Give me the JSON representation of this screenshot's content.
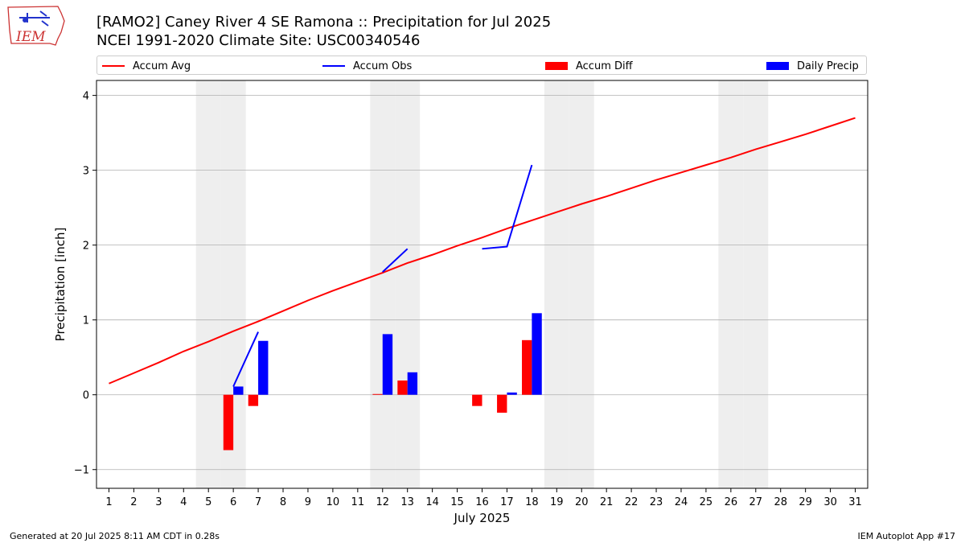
{
  "header": {
    "title_line1": "[RAMO2] Caney River 4 SE Ramona :: Precipitation for Jul 2025",
    "title_line2": "NCEI 1991-2020 Climate Site: USC00340546",
    "logo_text": "IEM"
  },
  "footer": {
    "generated": "Generated at 20 Jul 2025 8:11 AM CDT in 0.28s",
    "app": "IEM Autoplot App #17"
  },
  "colors": {
    "accum_avg": "#ff0000",
    "accum_obs": "#0000ff",
    "accum_diff": "#ff0000",
    "daily_precip": "#0000ff",
    "weekend_shade": "#eeeeee",
    "grid": "#b0b0b0"
  },
  "chart_data": {
    "type": "bar",
    "title": "[RAMO2] Caney River 4 SE Ramona :: Precipitation for Jul 2025",
    "subtitle": "NCEI 1991-2020 Climate Site: USC00340546",
    "xlabel": "July 2025",
    "ylabel": "Precipitation [inch]",
    "xlim": [
      0.5,
      31.5
    ],
    "ylim": [
      -1.25,
      4.2
    ],
    "yticks": [
      -1,
      0,
      1,
      2,
      3,
      4
    ],
    "ytick_labels": [
      "−1",
      "0",
      "1",
      "2",
      "3",
      "4"
    ],
    "grid": "horizontal",
    "legend_position": "top",
    "x": [
      1,
      2,
      3,
      4,
      5,
      6,
      7,
      8,
      9,
      10,
      11,
      12,
      13,
      14,
      15,
      16,
      17,
      18,
      19,
      20,
      21,
      22,
      23,
      24,
      25,
      26,
      27,
      28,
      29,
      30,
      31
    ],
    "x_labels": [
      "1",
      "2",
      "3",
      "4",
      "5",
      "6",
      "7",
      "8",
      "9",
      "10",
      "11",
      "12",
      "13",
      "14",
      "15",
      "16",
      "17",
      "18",
      "19",
      "20",
      "21",
      "22",
      "23",
      "24",
      "25",
      "26",
      "27",
      "28",
      "29",
      "30",
      "31"
    ],
    "weekend_days": [
      5,
      6,
      12,
      13,
      19,
      20,
      26,
      27
    ],
    "series": [
      {
        "name": "Accum Avg",
        "kind": "line",
        "values": [
          0.15,
          0.29,
          0.43,
          0.58,
          0.71,
          0.85,
          0.98,
          1.12,
          1.26,
          1.39,
          1.51,
          1.63,
          1.76,
          1.87,
          1.99,
          2.1,
          2.22,
          2.33,
          2.44,
          2.55,
          2.65,
          2.76,
          2.87,
          2.97,
          3.07,
          3.17,
          3.28,
          3.38,
          3.48,
          3.59,
          3.7
        ]
      },
      {
        "name": "Accum Obs",
        "kind": "line",
        "values": [
          null,
          null,
          null,
          null,
          null,
          0.11,
          0.84,
          null,
          null,
          null,
          null,
          1.64,
          1.95,
          null,
          null,
          1.95,
          1.98,
          3.07,
          null,
          null,
          null,
          null,
          null,
          null,
          null,
          null,
          null,
          null,
          null,
          null,
          null
        ]
      },
      {
        "name": "Accum Diff",
        "kind": "bar",
        "values": [
          null,
          null,
          null,
          null,
          null,
          -0.74,
          -0.15,
          null,
          null,
          null,
          null,
          0.01,
          0.19,
          null,
          null,
          -0.15,
          -0.24,
          0.73,
          null,
          null,
          null,
          null,
          null,
          null,
          null,
          null,
          null,
          null,
          null,
          null,
          null
        ]
      },
      {
        "name": "Daily Precip",
        "kind": "bar",
        "values": [
          null,
          null,
          null,
          null,
          null,
          0.11,
          0.72,
          null,
          null,
          null,
          null,
          0.81,
          0.3,
          null,
          null,
          null,
          0.03,
          1.09,
          null,
          null,
          null,
          null,
          null,
          null,
          null,
          null,
          null,
          null,
          null,
          null,
          null
        ]
      }
    ]
  }
}
